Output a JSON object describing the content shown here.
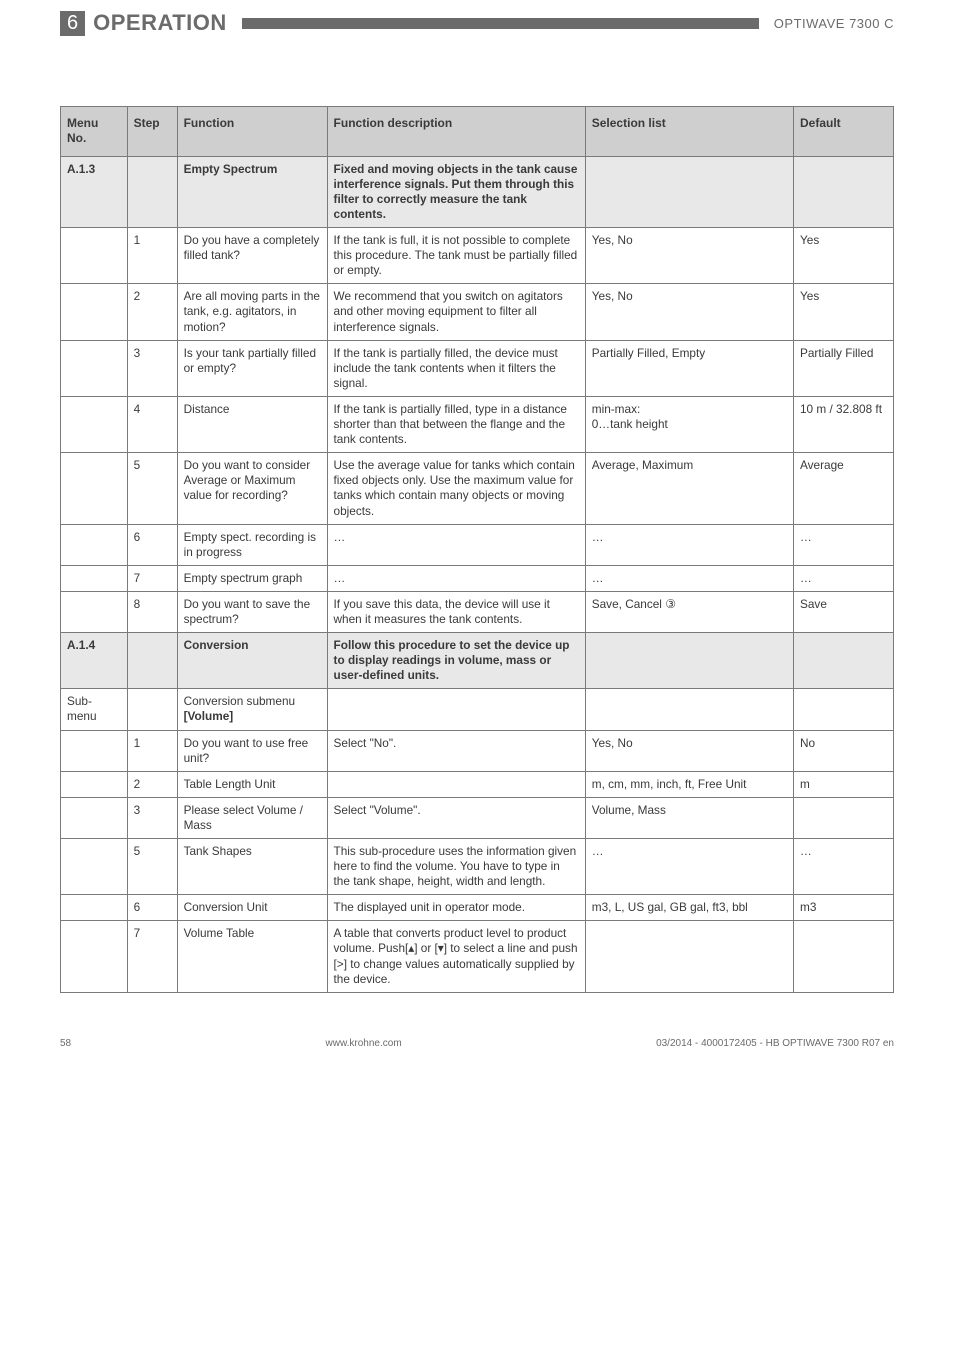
{
  "header": {
    "section_num": "6",
    "section_title": "OPERATION",
    "product": "OPTIWAVE 7300 C"
  },
  "columns": {
    "menu": "Menu No.",
    "step": "Step",
    "func": "Function",
    "desc": "Function description",
    "sel": "Selection list",
    "def": "Default"
  },
  "rows": [
    {
      "type": "section",
      "menu": "A.1.3",
      "func": "Empty Spectrum",
      "desc": "Fixed and moving objects in the tank cause interference signals. Put them through this filter to correctly measure the tank contents."
    },
    {
      "type": "row",
      "step": "1",
      "func": "Do you have a completely filled tank?",
      "desc": "If the tank is full, it is not possible to complete this procedure. The tank must be partially filled or empty.",
      "sel": "Yes, No",
      "def": "Yes"
    },
    {
      "type": "row",
      "step": "2",
      "func": "Are all moving parts in the tank, e.g. agitators, in motion?",
      "desc": "We recommend that you switch on agitators and other moving equipment to filter all interference signals.",
      "sel": "Yes, No",
      "def": "Yes"
    },
    {
      "type": "row",
      "step": "3",
      "func": "Is your tank partially filled or empty?",
      "desc": "If the tank is partially filled, the device must include the tank contents when it filters the signal.",
      "sel": "Partially Filled, Empty",
      "def": "Partially Filled"
    },
    {
      "type": "row",
      "step": "4",
      "func": "Distance",
      "desc": "If the tank is partially filled, type in a distance shorter than that between the flange and the tank contents.",
      "sel": "min-max:\n0…tank height",
      "def": "10 m / 32.808 ft"
    },
    {
      "type": "row",
      "step": "5",
      "func": "Do you want to consider Average or Maximum value for recording?",
      "desc": "Use the average value for tanks which contain fixed objects only. Use the maximum value for tanks which contain many objects or moving objects.",
      "sel": "Average, Maximum",
      "def": "Average"
    },
    {
      "type": "row",
      "step": "6",
      "func": "Empty spect. recording is in progress",
      "desc": "…",
      "sel": "…",
      "def": "…"
    },
    {
      "type": "row",
      "step": "7",
      "func": "Empty spectrum graph",
      "desc": "…",
      "sel": "…",
      "def": "…"
    },
    {
      "type": "row",
      "step": "8",
      "func": "Do you want to save the spectrum?",
      "desc": "If you save this data, the device will use it when it measures the tank contents.",
      "sel": "Save, Cancel ③",
      "def": "Save"
    },
    {
      "type": "section",
      "menu": "A.1.4",
      "func": "Conversion",
      "desc": "Follow this procedure to set the device up to display readings in volume, mass or user-defined units."
    },
    {
      "type": "submenu",
      "menu": "Sub-menu",
      "func_pre": "Conversion submenu ",
      "func_bold": "[Volume]"
    },
    {
      "type": "row",
      "step": "1",
      "func": "Do you want to use free unit?",
      "desc": "Select \"No\".",
      "sel": "Yes, No",
      "def": "No"
    },
    {
      "type": "row",
      "step": "2",
      "func": "Table Length Unit",
      "desc": "",
      "sel": "m, cm, mm, inch, ft, Free Unit",
      "def": "m"
    },
    {
      "type": "row",
      "step": "3",
      "func": "Please select Volume / Mass",
      "desc": "Select \"Volume\".",
      "sel": "Volume, Mass",
      "def": ""
    },
    {
      "type": "row",
      "step": "5",
      "func": "Tank Shapes",
      "desc": "This sub-procedure uses the information given here to find the volume. You have to type in the  tank shape, height, width and length.",
      "sel": "…",
      "def": "…"
    },
    {
      "type": "row",
      "step": "6",
      "func": "Conversion Unit",
      "desc": "The displayed unit in operator mode.",
      "sel": "m3, L, US gal, GB gal, ft3, bbl",
      "def": "m3"
    },
    {
      "type": "row",
      "step": "7",
      "func": "Volume Table",
      "desc": "A table that converts product level to product volume. Push[▴] or [▾] to select a line and push [>] to change values automatically supplied by the device.",
      "sel": "",
      "def": ""
    }
  ],
  "footer": {
    "page": "58",
    "site": "www.krohne.com",
    "doc": "03/2014 - 4000172405 - HB OPTIWAVE 7300 R07 en"
  }
}
